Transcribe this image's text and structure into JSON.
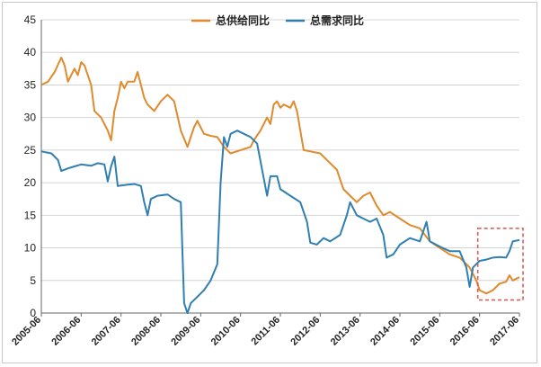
{
  "chart_data": {
    "type": "line",
    "title": "",
    "xlabel": "",
    "ylabel": "",
    "ylim": [
      0,
      45
    ],
    "yticks": [
      0,
      5,
      10,
      15,
      20,
      25,
      30,
      35,
      40,
      45
    ],
    "xlim": [
      "2005-06",
      "2017-06"
    ],
    "xticks": [
      "2005-06",
      "2006-06",
      "2007-06",
      "2008-06",
      "2009-06",
      "2010-06",
      "2011-06",
      "2012-06",
      "2013-06",
      "2014-06",
      "2015-06",
      "2016-06",
      "2017-06"
    ],
    "grid": {
      "horizontal": true,
      "vertical": false
    },
    "legend": {
      "position": "top-center"
    },
    "annotation": {
      "type": "dashed-box",
      "from": "2016-06",
      "to": "2017-06",
      "ylim": [
        2,
        13
      ],
      "color": "#d9534f"
    },
    "series": [
      {
        "name": "总供给同比",
        "color": "#e08a2e",
        "points": [
          [
            "2005-06",
            35
          ],
          [
            "2005-08",
            35.5
          ],
          [
            "2005-10",
            37
          ],
          [
            "2005-12",
            39.2
          ],
          [
            "2006-01",
            38
          ],
          [
            "2006-02",
            35.5
          ],
          [
            "2006-04",
            37.5
          ],
          [
            "2006-05",
            36.5
          ],
          [
            "2006-06",
            38.5
          ],
          [
            "2006-07",
            38
          ],
          [
            "2006-09",
            35
          ],
          [
            "2006-10",
            31
          ],
          [
            "2006-12",
            30
          ],
          [
            "2007-02",
            28
          ],
          [
            "2007-03",
            26.5
          ],
          [
            "2007-04",
            31
          ],
          [
            "2007-05",
            33
          ],
          [
            "2007-06",
            35.5
          ],
          [
            "2007-07",
            34.5
          ],
          [
            "2007-08",
            35.5
          ],
          [
            "2007-10",
            35.5
          ],
          [
            "2007-11",
            37
          ],
          [
            "2007-12",
            35
          ],
          [
            "2008-01",
            33
          ],
          [
            "2008-02",
            32
          ],
          [
            "2008-04",
            31
          ],
          [
            "2008-06",
            32.5
          ],
          [
            "2008-08",
            33.5
          ],
          [
            "2008-10",
            32.5
          ],
          [
            "2008-12",
            28
          ],
          [
            "2009-02",
            25.5
          ],
          [
            "2009-04",
            28.5
          ],
          [
            "2009-05",
            29.5
          ],
          [
            "2009-07",
            27.5
          ],
          [
            "2009-09",
            27.2
          ],
          [
            "2009-11",
            27
          ],
          [
            "2010-01",
            25.5
          ],
          [
            "2010-03",
            24.5
          ],
          [
            "2010-06",
            25
          ],
          [
            "2010-09",
            25.5
          ],
          [
            "2010-10",
            26.5
          ],
          [
            "2010-12",
            28
          ],
          [
            "2011-02",
            30
          ],
          [
            "2011-03",
            29
          ],
          [
            "2011-04",
            32
          ],
          [
            "2011-05",
            32.5
          ],
          [
            "2011-06",
            31.5
          ],
          [
            "2011-07",
            32
          ],
          [
            "2011-09",
            31.5
          ],
          [
            "2011-10",
            32.5
          ],
          [
            "2011-11",
            31
          ],
          [
            "2012-01",
            25
          ],
          [
            "2012-03",
            24.8
          ],
          [
            "2012-06",
            24.5
          ],
          [
            "2012-08",
            23.5
          ],
          [
            "2012-11",
            22
          ],
          [
            "2013-01",
            19
          ],
          [
            "2013-03",
            18
          ],
          [
            "2013-05",
            17
          ],
          [
            "2013-07",
            18
          ],
          [
            "2013-09",
            18.5
          ],
          [
            "2013-11",
            16.5
          ],
          [
            "2014-01",
            15
          ],
          [
            "2014-03",
            15.5
          ],
          [
            "2014-06",
            14.5
          ],
          [
            "2014-09",
            13.5
          ],
          [
            "2014-12",
            13
          ],
          [
            "2015-03",
            11
          ],
          [
            "2015-06",
            10
          ],
          [
            "2015-09",
            9
          ],
          [
            "2015-12",
            8.5
          ],
          [
            "2016-03",
            7
          ],
          [
            "2016-05",
            5
          ],
          [
            "2016-06",
            3.5
          ],
          [
            "2016-08",
            3
          ],
          [
            "2016-10",
            3.5
          ],
          [
            "2016-12",
            4.5
          ],
          [
            "2017-02",
            4.8
          ],
          [
            "2017-03",
            5.8
          ],
          [
            "2017-04",
            5
          ],
          [
            "2017-06",
            5.5
          ]
        ]
      },
      {
        "name": "总需求同比",
        "color": "#2f7fb0",
        "points": [
          [
            "2005-06",
            24.8
          ],
          [
            "2005-09",
            24.5
          ],
          [
            "2005-11",
            23.5
          ],
          [
            "2005-12",
            21.8
          ],
          [
            "2006-02",
            22.2
          ],
          [
            "2006-04",
            22.5
          ],
          [
            "2006-06",
            22.8
          ],
          [
            "2006-09",
            22.6
          ],
          [
            "2006-11",
            23
          ],
          [
            "2007-01",
            22.8
          ],
          [
            "2007-02",
            20.2
          ],
          [
            "2007-03",
            22.5
          ],
          [
            "2007-04",
            24
          ],
          [
            "2007-05",
            19.5
          ],
          [
            "2007-08",
            19.7
          ],
          [
            "2007-10",
            19.8
          ],
          [
            "2007-12",
            19.5
          ],
          [
            "2008-01",
            17
          ],
          [
            "2008-02",
            15
          ],
          [
            "2008-03",
            17.5
          ],
          [
            "2008-05",
            18
          ],
          [
            "2008-08",
            18.2
          ],
          [
            "2008-10",
            17.5
          ],
          [
            "2008-12",
            17
          ],
          [
            "2009-01",
            1.5
          ],
          [
            "2009-02",
            0
          ],
          [
            "2009-03",
            1.5
          ],
          [
            "2009-05",
            2.5
          ],
          [
            "2009-07",
            3.5
          ],
          [
            "2009-09",
            5
          ],
          [
            "2009-11",
            7.5
          ],
          [
            "2009-12",
            20
          ],
          [
            "2010-01",
            27
          ],
          [
            "2010-02",
            25.5
          ],
          [
            "2010-03",
            27.5
          ],
          [
            "2010-05",
            28
          ],
          [
            "2010-07",
            27.5
          ],
          [
            "2010-09",
            27
          ],
          [
            "2010-11",
            26
          ],
          [
            "2011-02",
            18
          ],
          [
            "2011-03",
            21
          ],
          [
            "2011-05",
            21
          ],
          [
            "2011-06",
            19
          ],
          [
            "2011-09",
            18
          ],
          [
            "2011-12",
            17
          ],
          [
            "2012-02",
            14
          ],
          [
            "2012-03",
            10.8
          ],
          [
            "2012-05",
            10.5
          ],
          [
            "2012-07",
            11.5
          ],
          [
            "2012-09",
            11
          ],
          [
            "2012-12",
            12
          ],
          [
            "2013-02",
            15
          ],
          [
            "2013-03",
            17
          ],
          [
            "2013-05",
            15
          ],
          [
            "2013-07",
            14.5
          ],
          [
            "2013-09",
            14
          ],
          [
            "2013-11",
            14.5
          ],
          [
            "2014-01",
            12
          ],
          [
            "2014-02",
            8.5
          ],
          [
            "2014-04",
            9
          ],
          [
            "2014-06",
            10.5
          ],
          [
            "2014-09",
            11.5
          ],
          [
            "2014-12",
            11
          ],
          [
            "2015-02",
            14
          ],
          [
            "2015-03",
            11
          ],
          [
            "2015-06",
            10.2
          ],
          [
            "2015-09",
            9.5
          ],
          [
            "2015-12",
            9.5
          ],
          [
            "2016-02",
            7
          ],
          [
            "2016-03",
            4
          ],
          [
            "2016-04",
            7
          ],
          [
            "2016-06",
            8
          ],
          [
            "2016-08",
            8.2
          ],
          [
            "2016-10",
            8.5
          ],
          [
            "2016-12",
            8.6
          ],
          [
            "2017-02",
            8.5
          ],
          [
            "2017-03",
            9.5
          ],
          [
            "2017-04",
            11
          ],
          [
            "2017-06",
            11.2
          ]
        ]
      }
    ]
  }
}
